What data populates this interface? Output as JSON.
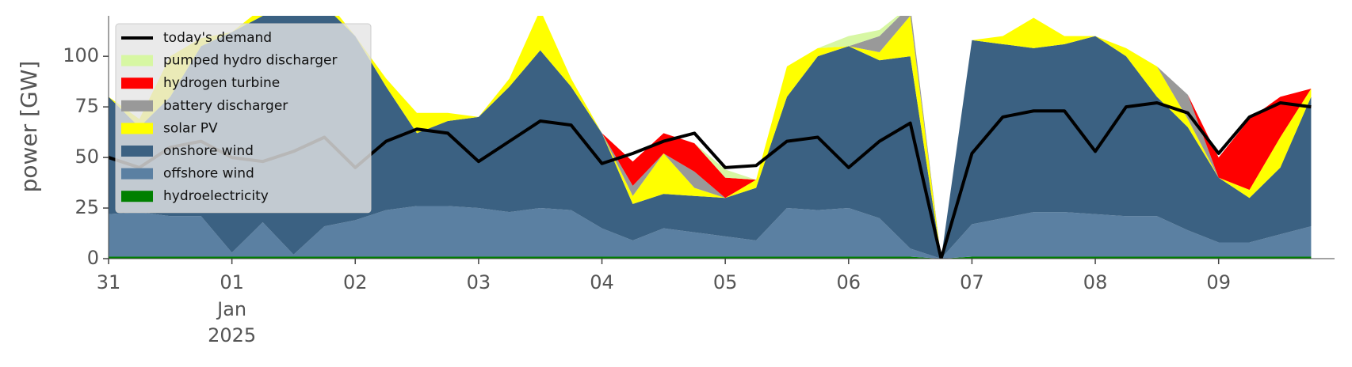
{
  "chart_data": {
    "type": "stacked_area",
    "ylabel": "power [GW]",
    "x": [
      0,
      0.25,
      0.5,
      0.75,
      1,
      1.25,
      1.5,
      1.75,
      2,
      2.25,
      2.5,
      2.75,
      3,
      3.25,
      3.5,
      3.75,
      4,
      4.25,
      4.5,
      4.75,
      5,
      5.25,
      5.5,
      5.75,
      6,
      6.25,
      6.5,
      6.75,
      7,
      7.25,
      7.5,
      7.75,
      8,
      8.25,
      8.5,
      8.75,
      9,
      9.25,
      9.5,
      9.75
    ],
    "xlim": [
      0,
      9.94
    ],
    "xticks": [
      {
        "value": 0,
        "label": "31"
      },
      {
        "value": 1,
        "label": "01"
      },
      {
        "value": 2,
        "label": "02"
      },
      {
        "value": 3,
        "label": "03"
      },
      {
        "value": 4,
        "label": "04"
      },
      {
        "value": 5,
        "label": "05"
      },
      {
        "value": 6,
        "label": "06"
      },
      {
        "value": 7,
        "label": "07"
      },
      {
        "value": 8,
        "label": "08"
      },
      {
        "value": 9,
        "label": "09"
      }
    ],
    "xtick_sublabels": [
      "Jan",
      "2025"
    ],
    "ylim": [
      0,
      120
    ],
    "yticks": [
      0,
      25,
      50,
      75,
      100
    ],
    "legend": "upper left",
    "series": [
      {
        "name": "hydroelectricity",
        "color": "#008000",
        "values": [
          1,
          1,
          1,
          1,
          1,
          1,
          1,
          1,
          1,
          1,
          1,
          1,
          1,
          1,
          1,
          1,
          1,
          1,
          1,
          1,
          1,
          1,
          1,
          1,
          1,
          1,
          1,
          0,
          1,
          1,
          1,
          1,
          1,
          1,
          1,
          1,
          1,
          1,
          1,
          1
        ]
      },
      {
        "name": "offshore wind",
        "color": "#5b80a2",
        "values": [
          21,
          22,
          20,
          20,
          2,
          17,
          1,
          15,
          18,
          23,
          25,
          25,
          24,
          22,
          24,
          23,
          14,
          8,
          14,
          12,
          10,
          8,
          24,
          23,
          24,
          19,
          4,
          0,
          16,
          19,
          22,
          22,
          21,
          20,
          20,
          13,
          7,
          7,
          11,
          15
        ]
      },
      {
        "name": "onshore wind",
        "color": "#3b6182",
        "values": [
          58,
          42,
          59,
          84,
          109,
          102,
          120,
          109,
          91,
          61,
          36,
          42,
          45,
          62,
          78,
          61,
          47,
          18,
          17,
          18,
          19,
          26,
          55,
          76,
          80,
          78,
          95,
          0,
          91,
          86,
          81,
          83,
          88,
          79,
          59,
          51,
          32,
          22,
          33,
          64
        ]
      },
      {
        "name": "solar PV",
        "color": "#ffff00",
        "values": [
          0,
          4,
          20,
          4,
          0,
          4,
          10,
          4,
          0,
          4,
          10,
          4,
          0,
          4,
          20,
          4,
          0,
          4,
          20,
          4,
          0,
          4,
          15,
          4,
          0,
          4,
          20,
          0,
          0,
          4,
          15,
          4,
          0,
          4,
          15,
          4,
          0,
          4,
          15,
          4
        ]
      },
      {
        "name": "battery discharger",
        "color": "#999999",
        "values": [
          0,
          0,
          0,
          0,
          0,
          0,
          0,
          0,
          0,
          0,
          0,
          0,
          0,
          0,
          0,
          0,
          0,
          5,
          0,
          8,
          0,
          0,
          0,
          0,
          0,
          8,
          5,
          0,
          0,
          0,
          0,
          0,
          0,
          0,
          0,
          12,
          0,
          0,
          0,
          0
        ]
      },
      {
        "name": "hydrogen turbine",
        "color": "#ff0000",
        "values": [
          0,
          0,
          0,
          0,
          0,
          0,
          0,
          0,
          0,
          0,
          0,
          0,
          0,
          0,
          0,
          0,
          0,
          12,
          10,
          14,
          10,
          0,
          0,
          0,
          0,
          0,
          0,
          0,
          0,
          0,
          0,
          0,
          0,
          0,
          0,
          0,
          10,
          35,
          20,
          0
        ]
      },
      {
        "name": "pumped hydro discharger",
        "color": "#d7f7a3",
        "values": [
          0,
          0,
          0,
          0,
          0,
          0,
          0,
          0,
          0,
          0,
          0,
          0,
          0,
          0,
          0,
          0,
          0,
          0,
          0,
          0,
          4,
          0,
          0,
          0,
          5,
          3,
          0,
          0,
          0,
          0,
          0,
          0,
          0,
          0,
          0,
          0,
          0,
          0,
          0,
          0
        ]
      }
    ],
    "line": {
      "name": "today's demand",
      "color": "#000000",
      "values": [
        50,
        45,
        55,
        58,
        50,
        48,
        53,
        60,
        45,
        58,
        64,
        62,
        48,
        58,
        68,
        66,
        47,
        52,
        58,
        62,
        45,
        46,
        58,
        60,
        45,
        58,
        67,
        0,
        52,
        70,
        73,
        73,
        53,
        75,
        77,
        72,
        52,
        70,
        77,
        75
      ]
    }
  }
}
